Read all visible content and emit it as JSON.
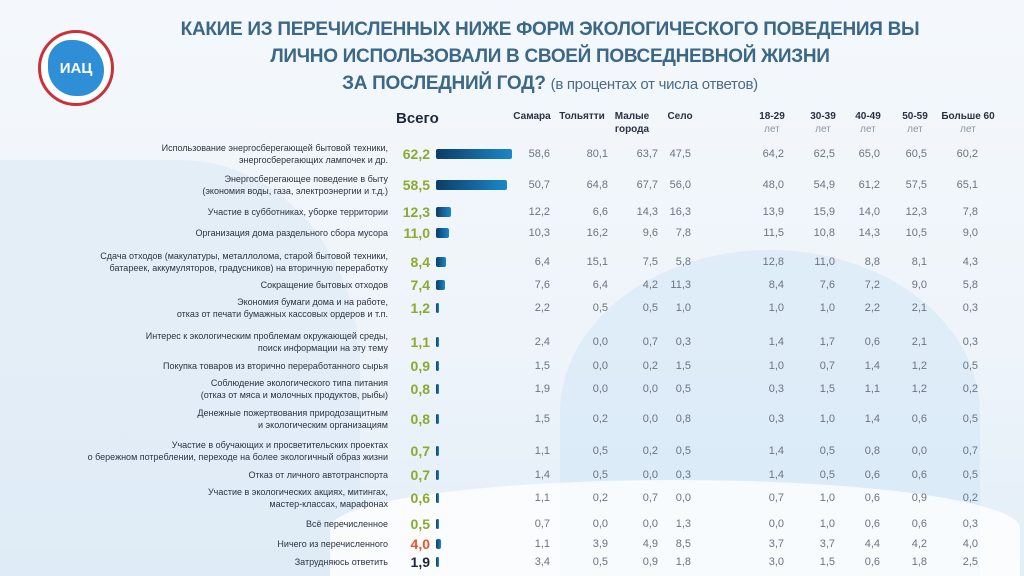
{
  "logo": {
    "text": "ИАЦ"
  },
  "title": {
    "line1": "Какие из перечисленных ниже форм экологического поведения Вы",
    "line2": "лично использовали в своей повседневной жизни",
    "line3": "за последний год?",
    "subtitle": "(в процентах от числа ответов)"
  },
  "colors": {
    "total_green": "#8aab2e",
    "total_red": "#e5552a",
    "total_dark": "#1e2838",
    "bar": "#1a88c9"
  },
  "chart_data": {
    "type": "table",
    "total_header": "Всего",
    "columns": [
      {
        "l1": "Самара",
        "l2": ""
      },
      {
        "l1": "Тольятти",
        "l2": ""
      },
      {
        "l1": "Малые",
        "l2": "города"
      },
      {
        "l1": "Село",
        "l2": ""
      },
      {
        "l1": "18-29",
        "l2": "лет"
      },
      {
        "l1": "30-39",
        "l2": "лет"
      },
      {
        "l1": "40-49",
        "l2": "лет"
      },
      {
        "l1": "50-59",
        "l2": "лет"
      },
      {
        "l1": "Больше 60",
        "l2": "лет"
      }
    ],
    "rows": [
      {
        "label": [
          "Использование энергосберегающей бытовой техники,",
          "энергосберегающих лампочек и др."
        ],
        "total": "62,2",
        "values": [
          "58,6",
          "80,1",
          "63,7",
          "47,5",
          "64,2",
          "62,5",
          "65,0",
          "60,5",
          "60,2"
        ]
      },
      {
        "label": [
          "Энергосберегающее поведение в быту",
          "(экономия воды, газа, электроэнергии и т.д.)"
        ],
        "total": "58,5",
        "values": [
          "50,7",
          "64,8",
          "67,7",
          "56,0",
          "48,0",
          "54,9",
          "61,2",
          "57,5",
          "65,1"
        ]
      },
      {
        "label": [
          "Участие в субботниках, уборке территории"
        ],
        "total": "12,3",
        "values": [
          "12,2",
          "6,6",
          "14,3",
          "16,3",
          "13,9",
          "15,9",
          "14,0",
          "12,3",
          "7,8"
        ]
      },
      {
        "label": [
          "Организация дома раздельного сбора мусора"
        ],
        "total": "11,0",
        "values": [
          "10,3",
          "16,2",
          "9,6",
          "7,8",
          "11,5",
          "10,8",
          "14,3",
          "10,5",
          "9,0"
        ]
      },
      {
        "label": [
          "Сдача отходов (макулатуры, металлолома, старой бытовой техники,",
          "батареек, аккумуляторов, градусников) на вторичную переработку"
        ],
        "total": "8,4",
        "values": [
          "6,4",
          "15,1",
          "7,5",
          "5,8",
          "12,8",
          "11,0",
          "8,8",
          "8,1",
          "4,3"
        ]
      },
      {
        "label": [
          "Сокращение бытовых отходов"
        ],
        "total": "7,4",
        "values": [
          "7,6",
          "6,4",
          "4,2",
          "11,3",
          "8,4",
          "7,6",
          "7,2",
          "9,0",
          "5,8"
        ]
      },
      {
        "label": [
          "Экономия бумаги дома и на работе,",
          "отказ от печати бумажных кассовых ордеров и т.п."
        ],
        "total": "1,2",
        "values": [
          "2,2",
          "0,5",
          "0,5",
          "1,0",
          "1,0",
          "1,0",
          "2,2",
          "2,1",
          "0,3"
        ]
      },
      {
        "label": [
          "Интерес к экологическим проблемам окружающей среды,",
          "поиск информации на эту тему"
        ],
        "total": "1,1",
        "values": [
          "2,4",
          "0,0",
          "0,7",
          "0,3",
          "1,4",
          "1,7",
          "0,6",
          "2,1",
          "0,3"
        ]
      },
      {
        "label": [
          "Покупка товаров из вторично переработанного сырья"
        ],
        "total": "0,9",
        "values": [
          "1,5",
          "0,0",
          "0,2",
          "1,5",
          "1,0",
          "0,7",
          "1,4",
          "1,2",
          "0,5"
        ]
      },
      {
        "label": [
          "Соблюдение экологического типа питания",
          "(отказ от мяса и молочных продуктов, рыбы)"
        ],
        "total": "0,8",
        "values": [
          "1,9",
          "0,0",
          "0,0",
          "0,5",
          "0,3",
          "1,5",
          "1,1",
          "1,2",
          "0,2"
        ]
      },
      {
        "label": [
          "Денежные пожертвования природозащитным",
          "и экологическим организациям"
        ],
        "total": "0,8",
        "values": [
          "1,5",
          "0,2",
          "0,0",
          "0,8",
          "0,3",
          "1,0",
          "1,4",
          "0,6",
          "0,5"
        ]
      },
      {
        "label": [
          "Участие в обучающих и просветительских проектах",
          "о бережном потреблении, переходе на более экологичный образ жизни"
        ],
        "total": "0,7",
        "values": [
          "1,1",
          "0,5",
          "0,2",
          "0,5",
          "1,4",
          "0,5",
          "0,8",
          "0,0",
          "0,7"
        ]
      },
      {
        "label": [
          "Отказ от личного автотранспорта"
        ],
        "total": "0,7",
        "values": [
          "1,4",
          "0,5",
          "0,0",
          "0,3",
          "1,4",
          "0,5",
          "0,6",
          "0,6",
          "0,5"
        ]
      },
      {
        "label": [
          "Участие в экологических акциях, митингах,",
          "мастер-классах, марафонах"
        ],
        "total": "0,6",
        "values": [
          "1,1",
          "0,2",
          "0,7",
          "0,0",
          "0,7",
          "1,0",
          "0,6",
          "0,9",
          "0,2"
        ]
      },
      {
        "label": [
          "Всё перечисленное"
        ],
        "total": "0,5",
        "values": [
          "0,7",
          "0,0",
          "0,0",
          "1,3",
          "0,0",
          "1,0",
          "0,6",
          "0,6",
          "0,3"
        ]
      },
      {
        "label": [
          "Ничего из перечисленного"
        ],
        "total": "4,0",
        "total_color": "red",
        "values": [
          "1,1",
          "3,9",
          "4,9",
          "8,5",
          "3,7",
          "3,7",
          "4,4",
          "4,2",
          "4,0"
        ]
      },
      {
        "label": [
          "Затрудняюсь ответить"
        ],
        "total": "1,9",
        "total_color": "dark",
        "values": [
          "3,4",
          "0,5",
          "0,9",
          "1,8",
          "3,0",
          "1,5",
          "0,6",
          "1,8",
          "2,5"
        ]
      }
    ]
  }
}
